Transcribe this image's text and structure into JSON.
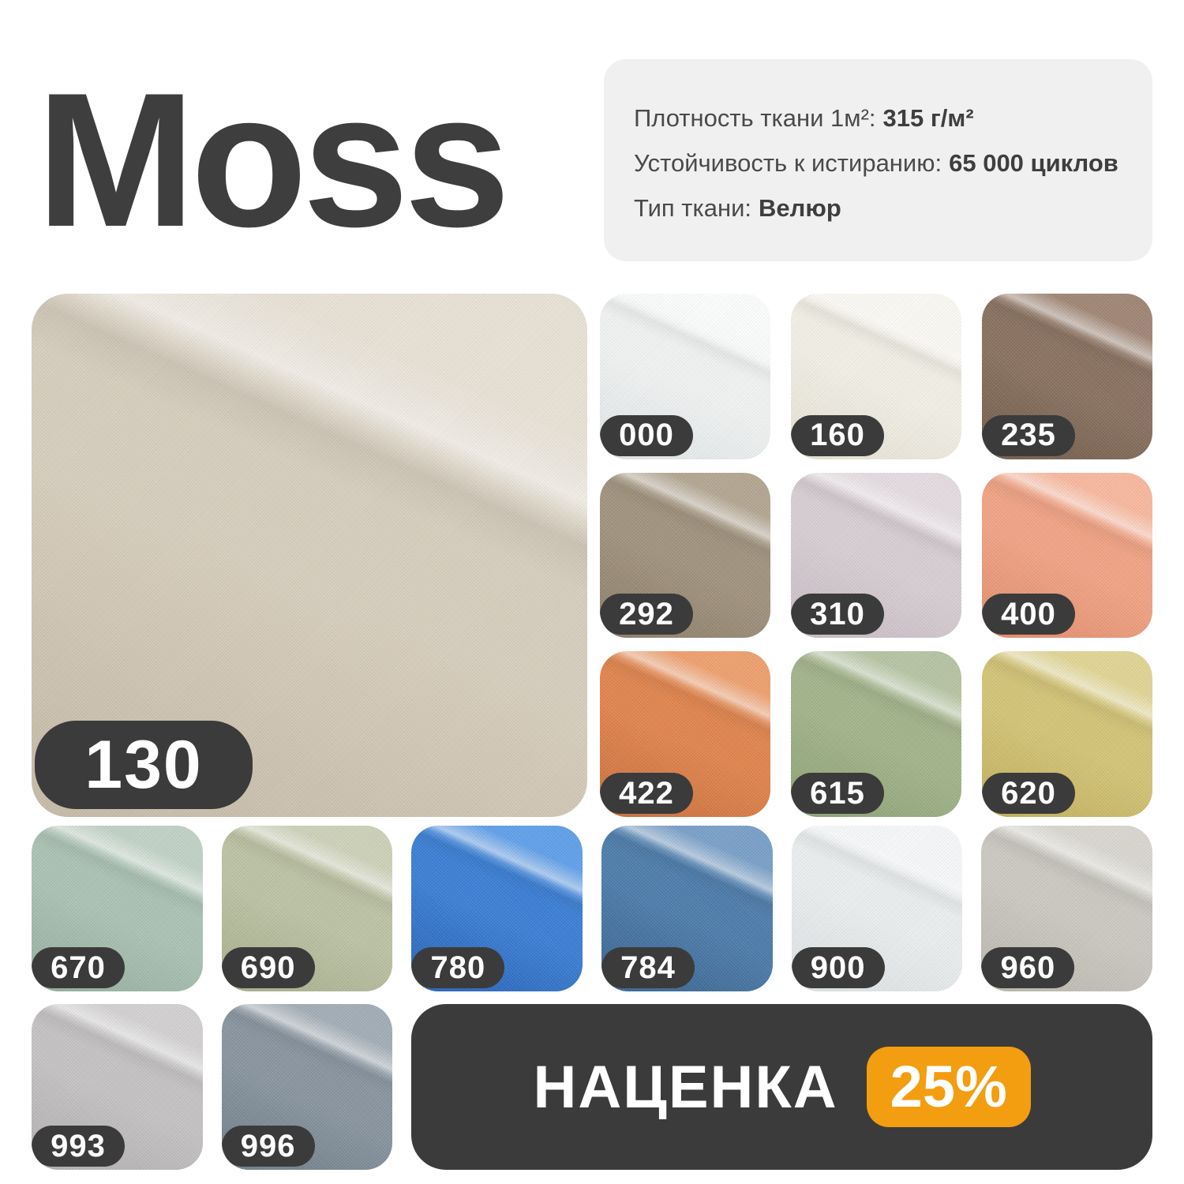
{
  "title": "Moss",
  "theme": {
    "dark": "#3e3e3e",
    "panel": "#3b3b3b",
    "card_bg": "#f0f0f0",
    "orange": "#f39d10"
  },
  "specs": [
    {
      "label": "Плотность ткани 1м²:",
      "value": "315 г/м²"
    },
    {
      "label": "Устойчивость к истиранию:",
      "value": "65 000 циклов"
    },
    {
      "label": "Тип ткани:",
      "value": "Велюр"
    }
  ],
  "swatches": [
    {
      "code": "130",
      "light": "#e7e1d5",
      "base": "#d6cdbd",
      "dark": "#c5baa7"
    },
    {
      "code": "000",
      "light": "#fbfcfc",
      "base": "#f0f2f2",
      "dark": "#dfe3e4"
    },
    {
      "code": "160",
      "light": "#faf8f2",
      "base": "#f1eee5",
      "dark": "#e3dfd2"
    },
    {
      "code": "235",
      "light": "#a08675",
      "base": "#8a7261",
      "dark": "#715c4c"
    },
    {
      "code": "292",
      "light": "#b3a692",
      "base": "#a1937e",
      "dark": "#8c7e6a"
    },
    {
      "code": "310",
      "light": "#e3dbe0",
      "base": "#d7cdd3",
      "dark": "#c6bac1"
    },
    {
      "code": "400",
      "light": "#f7b89f",
      "base": "#f0a385",
      "dark": "#e08c6c"
    },
    {
      "code": "422",
      "light": "#eda06f",
      "base": "#e0854f",
      "dark": "#c96f3d"
    },
    {
      "code": "615",
      "light": "#b5c4a3",
      "base": "#a3b48c",
      "dark": "#8ba174"
    },
    {
      "code": "620",
      "light": "#e0d494",
      "base": "#d3c477",
      "dark": "#bfae5c"
    },
    {
      "code": "670",
      "light": "#c0d1c5",
      "base": "#abc2b4",
      "dark": "#93ad9e"
    },
    {
      "code": "690",
      "light": "#ccd1b8",
      "base": "#bcc2a4",
      "dark": "#a6ad8c"
    },
    {
      "code": "780",
      "light": "#61a0e8",
      "base": "#3c7fd4",
      "dark": "#2a62b4"
    },
    {
      "code": "784",
      "light": "#7aa0c8",
      "base": "#4e7dab",
      "dark": "#39648f"
    },
    {
      "code": "900",
      "light": "#f5f7f8",
      "base": "#eaedee",
      "dark": "#dbdfe1"
    },
    {
      "code": "960",
      "light": "#d8d6cf",
      "base": "#cac8c0",
      "dark": "#b8b6ac"
    },
    {
      "code": "993",
      "light": "#d2d0d0",
      "base": "#c4c2c2",
      "dark": "#b0aeae"
    },
    {
      "code": "996",
      "light": "#a2adb5",
      "base": "#8995a0",
      "dark": "#707d88"
    }
  ],
  "promo": {
    "label": "НАЦЕНКА",
    "badge": "25%"
  }
}
